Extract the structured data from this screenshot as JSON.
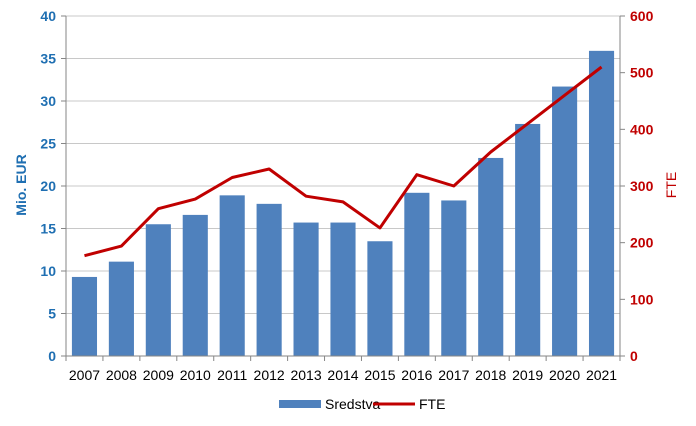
{
  "chart_data": {
    "type": "bar",
    "categories": [
      "2007",
      "2008",
      "2009",
      "2010",
      "2011",
      "2012",
      "2013",
      "2014",
      "2015",
      "2016",
      "2017",
      "2018",
      "2019",
      "2020",
      "2021"
    ],
    "series": [
      {
        "name": "Sredstva",
        "type": "bar",
        "axis": "left",
        "color": "#4f81bd",
        "values": [
          9.3,
          11.1,
          15.5,
          16.6,
          18.9,
          17.9,
          15.7,
          15.7,
          13.5,
          19.2,
          18.3,
          23.3,
          27.3,
          31.7,
          35.9
        ]
      },
      {
        "name": "FTE",
        "type": "line",
        "axis": "right",
        "color": "#c00000",
        "values": [
          177,
          194,
          260,
          277,
          315,
          330,
          282,
          272,
          226,
          320,
          300,
          360,
          410,
          460,
          510
        ]
      }
    ],
    "y_left": {
      "label": "Mio. EUR",
      "range": [
        0,
        40
      ],
      "ticks": [
        "0",
        "5",
        "10",
        "15",
        "20",
        "25",
        "30",
        "35",
        "40"
      ],
      "color": "#1f6fb2"
    },
    "y_right": {
      "label": "FTE",
      "range": [
        0,
        600
      ],
      "ticks": [
        "0",
        "100",
        "200",
        "300",
        "400",
        "500",
        "600"
      ],
      "color": "#c00000"
    },
    "grid": true,
    "legend": {
      "position": "bottom",
      "entries": [
        "Sredstva",
        "FTE"
      ]
    }
  }
}
